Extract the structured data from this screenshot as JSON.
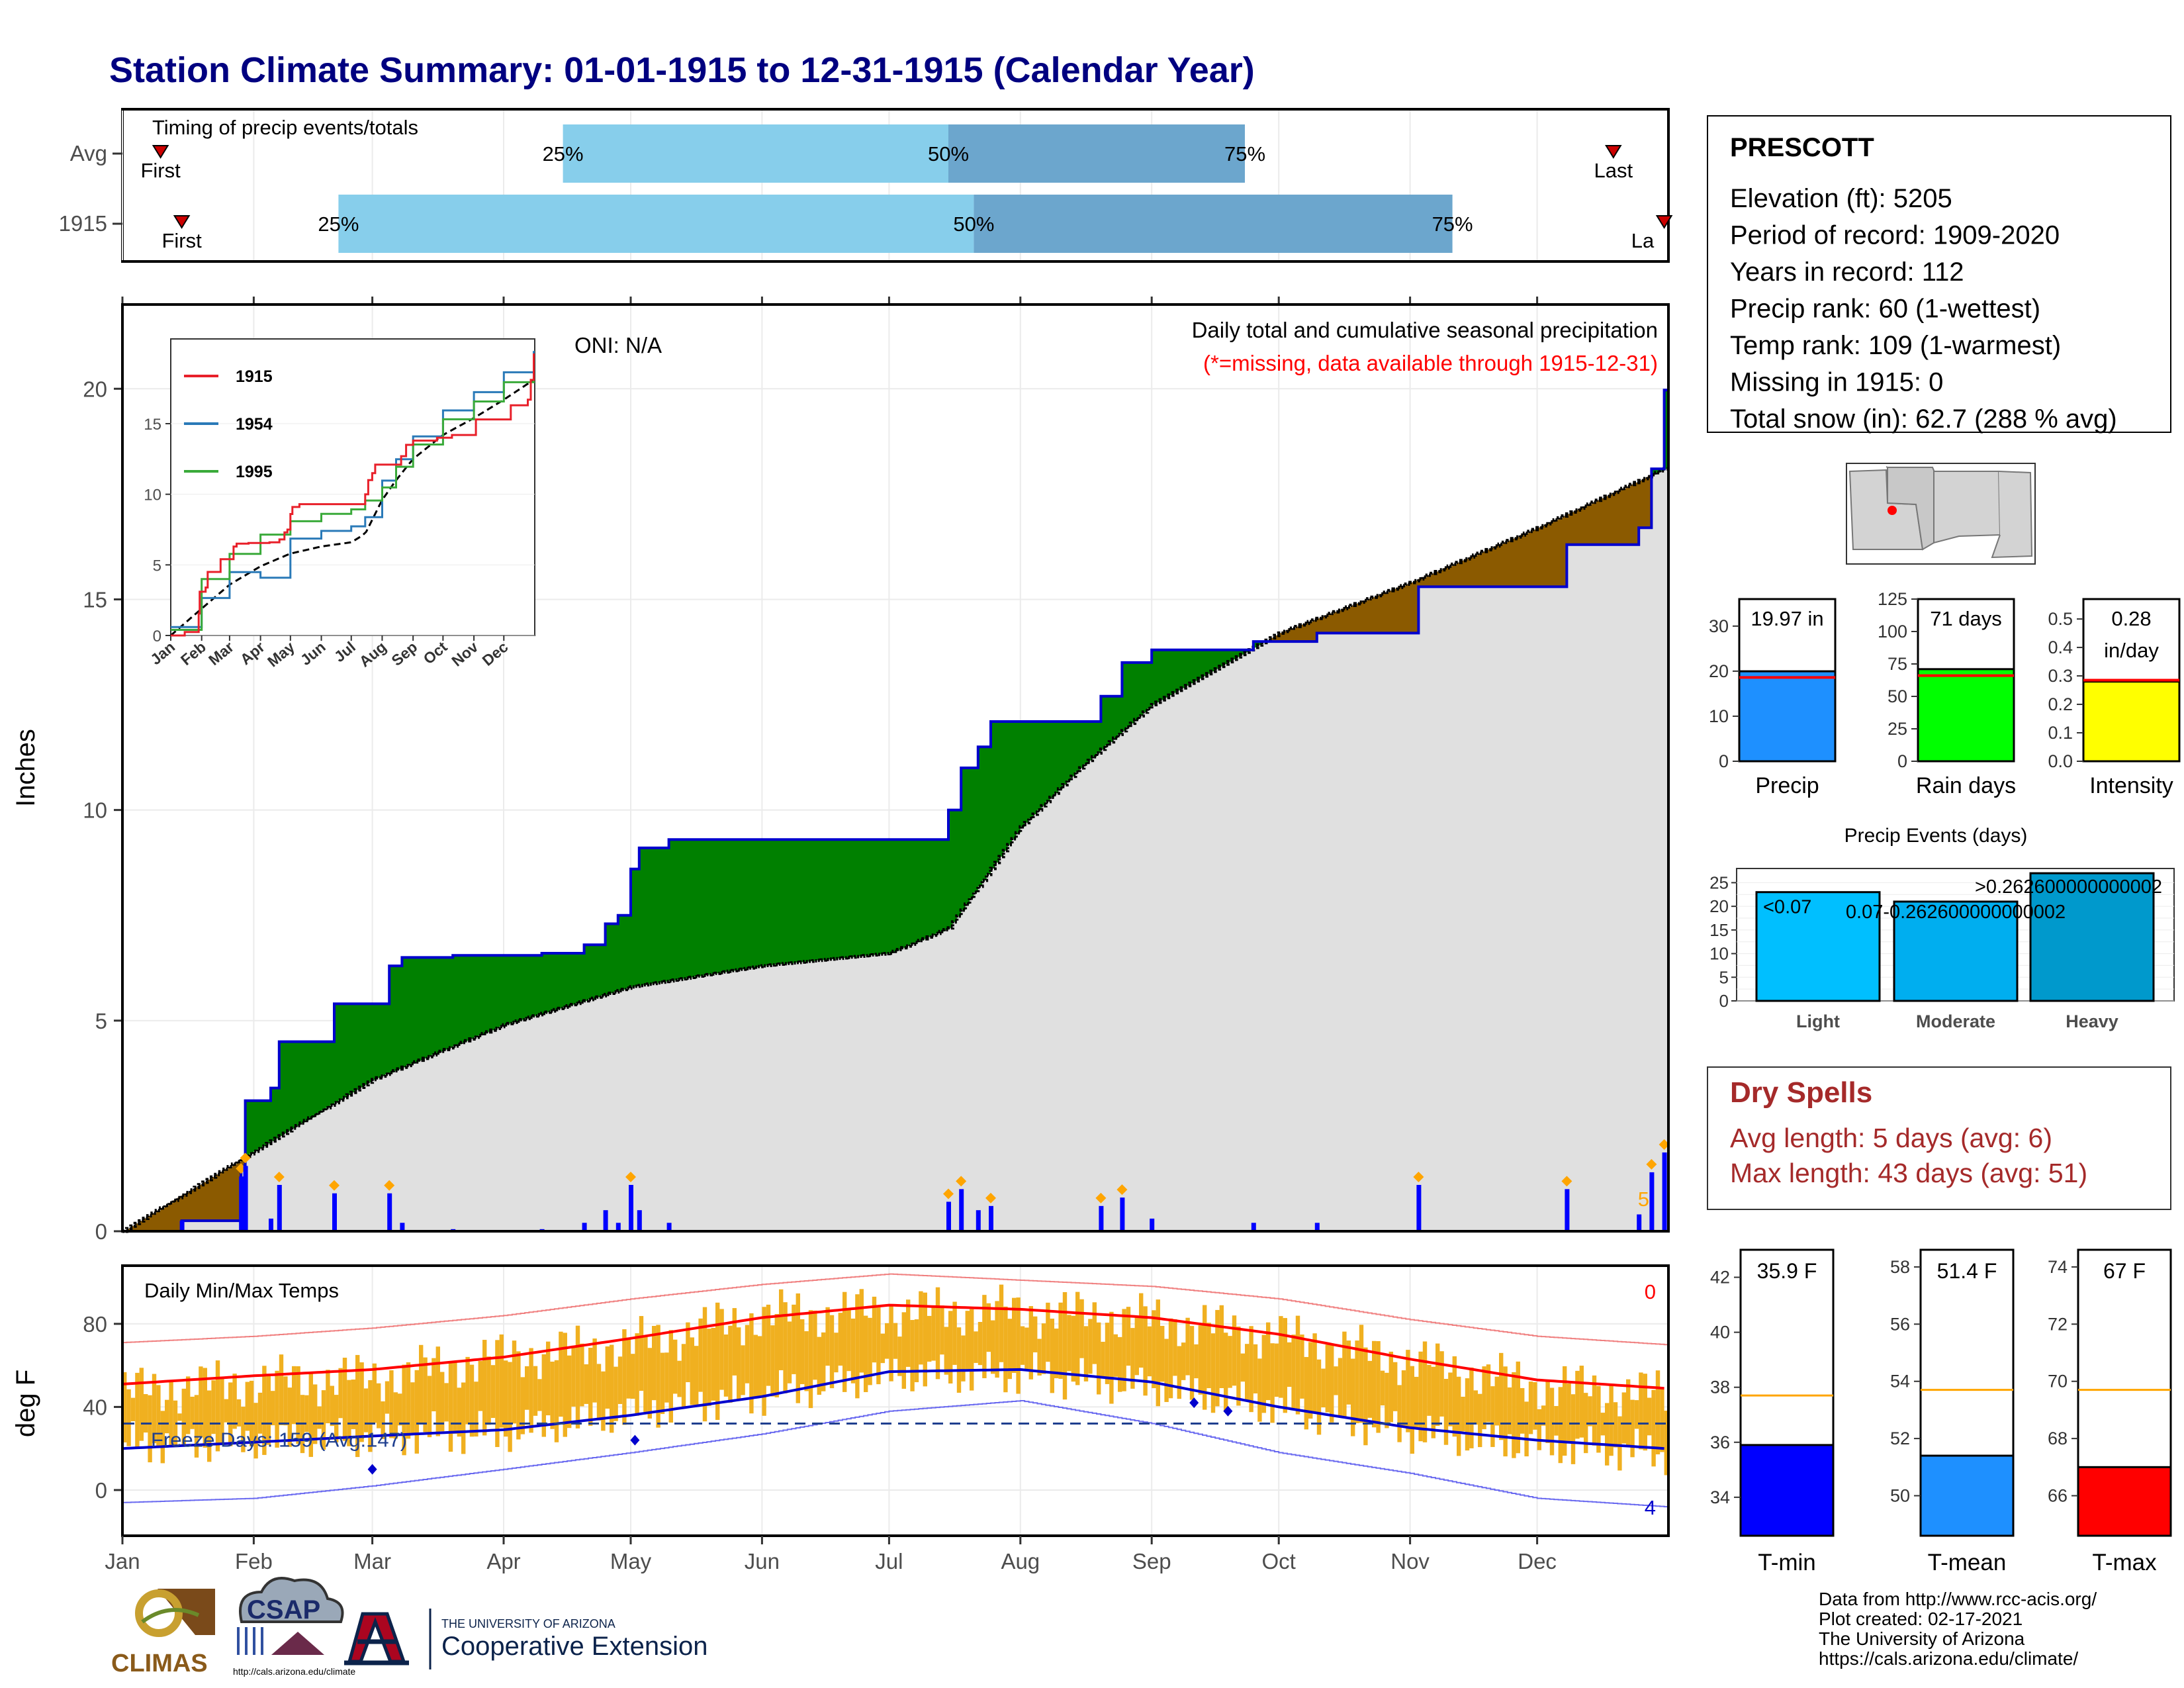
{
  "title": "Station Climate Summary: 01-01-1915 to 12-31-1915 (Calendar Year)",
  "colors": {
    "title": "#000080",
    "green": "#008000",
    "brown": "#8B5A00",
    "gray_fill": "#e0e0e0",
    "precip_line": "#0000cd",
    "q_light": "#87CEEB",
    "q_dark": "#6CA6CD",
    "tmax": "#ff0000",
    "tmin": "#0000cd",
    "temp_bar": "#f0b020",
    "dry_spell": "#A52A2A",
    "freeze": "#1f3f8f"
  },
  "timing_panel": {
    "title": "Timing of precip events/totals",
    "rows": [
      {
        "label": "Avg",
        "first_label": "First",
        "last_label": "Last",
        "first_doy": 10,
        "last_doy": 353,
        "quartiles": [
          {
            "label": "25%",
            "doy": 105
          },
          {
            "label": "50%",
            "doy": 196
          },
          {
            "label": "75%",
            "doy": 266
          }
        ]
      },
      {
        "label": "1915",
        "first_label": "First",
        "last_label": "La",
        "first_doy": 15,
        "last_doy": 365,
        "quartiles": [
          {
            "label": "25%",
            "doy": 52
          },
          {
            "label": "50%",
            "doy": 202
          },
          {
            "label": "75%",
            "doy": 315
          }
        ]
      }
    ]
  },
  "precip_panel": {
    "ylabel": "Inches",
    "yticks": [
      0,
      5,
      10,
      15,
      20
    ],
    "ylim": [
      0,
      22
    ],
    "oni": "ONI: N/A",
    "note1": "Daily total and cumulative seasonal precipitation",
    "note2": "(*=missing, data available through 1915-12-31)",
    "corner_count": "5"
  },
  "inset_panel": {
    "legend": [
      {
        "name": "1915",
        "color": "#e8202a"
      },
      {
        "name": "1954",
        "color": "#2a7ab8"
      },
      {
        "name": "1995",
        "color": "#3aaa3a"
      }
    ],
    "yticks": [
      0,
      5,
      10,
      15
    ],
    "months": [
      "Jan",
      "Feb",
      "Mar",
      "Apr",
      "May",
      "Jun",
      "Jul",
      "Aug",
      "Sep",
      "Oct",
      "Nov",
      "Dec"
    ]
  },
  "temp_panel": {
    "ylabel": "deg F",
    "title": "Daily Min/Max Temps",
    "freeze_label": "Freeze Days: 159 (Avg:147)",
    "yticks": [
      0,
      40,
      80
    ],
    "ylim": [
      -22,
      108
    ],
    "freeze_line": 32,
    "top_count": "0",
    "bottom_count": "4"
  },
  "months": [
    "Jan",
    "Feb",
    "Mar",
    "Apr",
    "May",
    "Jun",
    "Jul",
    "Aug",
    "Sep",
    "Oct",
    "Nov",
    "Dec"
  ],
  "station": {
    "name": "PRESCOTT",
    "lines": [
      "Elevation (ft): 5205",
      "Period of record: 1909-2020",
      "Years in record: 112",
      "Precip rank: 60 (1-wettest)",
      "Temp rank: 109 (1-warmest)",
      "Missing in 1915: 0",
      "Total snow (in): 62.7 (288 % avg)"
    ]
  },
  "precip_gauges": [
    {
      "label": "Precip",
      "value_label": "19.97 in",
      "value": 19.97,
      "avg": 18.6,
      "ymax": 36,
      "yticks": [
        0,
        10,
        20,
        30
      ],
      "color": "#1E90FF"
    },
    {
      "label": "Rain days",
      "value_label": "71 days",
      "value": 71,
      "avg": 66,
      "ymax": 125,
      "yticks": [
        0,
        25,
        50,
        75,
        100,
        125
      ],
      "color": "#00ff00"
    },
    {
      "label": "Intensity",
      "value_label": "0.28",
      "value_label2": "in/day",
      "value": 0.28,
      "avg": 0.285,
      "ymax": 0.57,
      "yticks": [
        0.0,
        0.1,
        0.2,
        0.3,
        0.4,
        0.5
      ],
      "color": "#ffff00"
    }
  ],
  "events_panel": {
    "title": "Precip Events (days)",
    "yticks": [
      0,
      5,
      10,
      15,
      20,
      25
    ],
    "ymax": 28,
    "bars": [
      {
        "category": "Light",
        "value": 23,
        "label": "<0.07",
        "color": "#00BFFF"
      },
      {
        "category": "Moderate",
        "value": 21,
        "label": "0.07-0.262600000000002",
        "color": "#00AEEF"
      },
      {
        "category": "Heavy",
        "value": 27,
        "label": ">0.262600000000002",
        "color": "#0099CC"
      }
    ]
  },
  "dry_spells": {
    "title": "Dry Spells",
    "avg": "Avg length: 5 days (avg: 6)",
    "max": "Max length: 43 days (avg: 51)"
  },
  "temp_gauges": [
    {
      "label": "T-min",
      "value_label": "35.9 F",
      "value": 35.9,
      "avg": 37.7,
      "ymin": 32.6,
      "ymax": 43.0,
      "yticks": [
        34,
        36,
        38,
        40,
        42
      ],
      "color": "#0000ff"
    },
    {
      "label": "T-mean",
      "value_label": "51.4 F",
      "value": 51.4,
      "avg": 53.7,
      "ymin": 48.6,
      "ymax": 58.6,
      "yticks": [
        50,
        52,
        54,
        56,
        58
      ],
      "color": "#1E90FF"
    },
    {
      "label": "T-max",
      "value_label": "67 F",
      "value": 67.0,
      "avg": 69.7,
      "ymin": 64.6,
      "ymax": 74.6,
      "yticks": [
        66,
        68,
        70,
        72,
        74
      ],
      "color": "#ff0000"
    }
  ],
  "footer": {
    "lines": [
      "Data from http://www.rcc-acis.org/",
      "Plot created: 02-17-2021",
      "The University of Arizona",
      "https://cals.arizona.edu/climate/"
    ],
    "climas": "CLIMAS",
    "csap": "CSAP",
    "csap_url": "http://cals.arizona.edu/climate",
    "ua_small": "THE UNIVERSITY OF ARIZONA",
    "ua_big": "Cooperative Extension"
  },
  "chart_data": [
    {
      "type": "area",
      "title": "Daily total and cumulative seasonal precipitation",
      "ylabel": "Inches",
      "ylim": [
        0,
        22
      ],
      "series": [
        {
          "name": "1915",
          "x": [
            "1915-01-01",
            "1915-01-15",
            "1915-01-29",
            "1915-01-30",
            "1915-02-05",
            "1915-02-07",
            "1915-02-15",
            "1915-02-20",
            "1915-02-28",
            "1915-03-05",
            "1915-03-08",
            "1915-03-15",
            "1915-03-20",
            "1915-04-10",
            "1915-04-20",
            "1915-04-25",
            "1915-04-28",
            "1915-05-01",
            "1915-05-03",
            "1915-05-10",
            "1915-05-15",
            "1915-07-10",
            "1915-07-15",
            "1915-07-18",
            "1915-07-22",
            "1915-07-25",
            "1915-08-10",
            "1915-08-20",
            "1915-08-25",
            "1915-09-01",
            "1915-09-20",
            "1915-09-25",
            "1915-10-10",
            "1915-11-02",
            "1915-11-03",
            "1915-11-10",
            "1915-12-08",
            "1915-12-10",
            "1915-12-25",
            "1915-12-28",
            "1915-12-31"
          ],
          "y": [
            0,
            0.25,
            1.55,
            3.1,
            3.4,
            4.5,
            4.5,
            5.4,
            5.4,
            6.3,
            6.5,
            6.5,
            6.55,
            6.6,
            6.8,
            7.3,
            7.5,
            8.6,
            9.1,
            9.3,
            9.3,
            9.3,
            10.0,
            11.0,
            11.5,
            12.1,
            12.1,
            12.7,
            13.5,
            13.8,
            13.8,
            14.0,
            14.2,
            14.2,
            15.3,
            15.3,
            16.3,
            16.3,
            16.7,
            18.1,
            19.97
          ]
        },
        {
          "name": "Avg",
          "x": [
            "1915-01-01",
            "1915-02-01",
            "1915-03-01",
            "1915-04-01",
            "1915-05-01",
            "1915-06-01",
            "1915-07-01",
            "1915-07-15",
            "1915-08-01",
            "1915-08-15",
            "1915-09-01",
            "1915-10-01",
            "1915-11-01",
            "1915-12-01",
            "1915-12-31"
          ],
          "y": [
            0,
            1.9,
            3.6,
            4.9,
            5.8,
            6.3,
            6.6,
            7.2,
            9.6,
            11.0,
            12.5,
            14.2,
            15.4,
            16.7,
            18.1
          ]
        }
      ]
    },
    {
      "type": "line",
      "title": "Daily Min/Max Temps",
      "ylabel": "deg F",
      "ylim": [
        -22,
        108
      ],
      "series": [
        {
          "name": "Avg max",
          "x": [
            1,
            32,
            60,
            91,
            121,
            152,
            182,
            213,
            244,
            274,
            305,
            335,
            365
          ],
          "y": [
            51,
            55,
            58,
            64,
            73,
            83,
            89,
            87,
            83,
            75,
            63,
            53,
            49
          ]
        },
        {
          "name": "Avg min",
          "x": [
            1,
            32,
            60,
            91,
            121,
            152,
            182,
            213,
            244,
            274,
            305,
            335,
            365
          ],
          "y": [
            20,
            23,
            26,
            29,
            36,
            45,
            57,
            58,
            52,
            40,
            30,
            24,
            20
          ]
        },
        {
          "name": "Record high",
          "x": [
            1,
            32,
            60,
            91,
            121,
            152,
            182,
            213,
            244,
            274,
            305,
            335,
            365
          ],
          "y": [
            71,
            74,
            78,
            84,
            92,
            99,
            104,
            101,
            98,
            92,
            82,
            74,
            70
          ]
        },
        {
          "name": "Record low",
          "x": [
            1,
            32,
            60,
            91,
            121,
            152,
            182,
            213,
            244,
            274,
            305,
            335,
            365
          ],
          "y": [
            -6,
            -4,
            2,
            10,
            18,
            27,
            38,
            43,
            32,
            18,
            8,
            -4,
            -8
          ]
        },
        {
          "name": "1915 max",
          "x": [
            1,
            32,
            60,
            91,
            121,
            152,
            182,
            213,
            244,
            274,
            305,
            335,
            365
          ],
          "y": [
            47,
            52,
            54,
            64,
            70,
            84,
            86,
            86,
            82,
            74,
            62,
            50,
            46
          ]
        },
        {
          "name": "1915 min",
          "x": [
            1,
            32,
            60,
            91,
            121,
            152,
            182,
            213,
            244,
            274,
            305,
            335,
            365
          ],
          "y": [
            22,
            24,
            26,
            28,
            38,
            46,
            56,
            56,
            50,
            40,
            28,
            22,
            18
          ]
        }
      ]
    },
    {
      "type": "bar",
      "title": "Precip Events (days)",
      "categories": [
        "Light",
        "Moderate",
        "Heavy"
      ],
      "values": [
        23,
        21,
        27
      ]
    }
  ]
}
